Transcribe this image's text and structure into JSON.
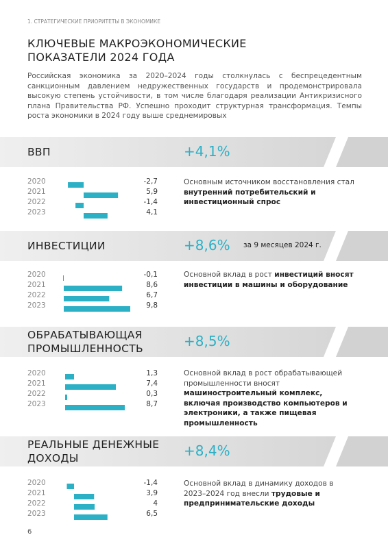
{
  "header": {
    "section": "1. СТРАТЕГИЧЕСКИЕ ПРИОРИТЕТЫ В ЭКОНОМИКЕ",
    "title_lines": [
      "КЛЮЧЕВЫЕ МАКРОЭКОНОМИЧЕСКИЕ",
      "ПОКАЗАТЕЛИ 2024 ГОДА"
    ]
  },
  "intro": "Российская экономика за 2020–2024 годы столкнулась с беспрецедентным санкционным давлением недружественных государств и продемонстрировала высокую степень устойчивости, в том числе благодаря реализации Антикризисного плана Правительства РФ. Успешно проходит структурная трансформация. Темпы роста экономики в 2024 году выше среднемировых",
  "sections": [
    {
      "title_lines": [
        "ВВП"
      ],
      "headline": "+4,1%",
      "chart": {
        "categories": [
          "2020",
          "2021",
          "2022",
          "2023"
        ],
        "values": [
          -2.7,
          5.9,
          -1.4,
          4.1
        ],
        "value_labels": [
          "-2,7",
          "5,9",
          "-1,4",
          "4,1"
        ],
        "color": "#2bb0c6"
      },
      "description": [
        {
          "text": "Основным источником восстановления стал ",
          "bold": false
        },
        {
          "text": "внутренний потребительский и инвестиционный спрос",
          "bold": true
        }
      ]
    },
    {
      "title_lines": [
        "ИНВЕСТИЦИИ"
      ],
      "headline": "+8,6%",
      "note": "за 9 месяцев 2024 г.",
      "chart": {
        "categories": [
          "2020",
          "2021",
          "2022",
          "2023"
        ],
        "values": [
          -0.1,
          8.6,
          6.7,
          9.8
        ],
        "value_labels": [
          "-0,1",
          "8,6",
          "6,7",
          "9,8"
        ],
        "color": "#2bb0c6"
      },
      "description": [
        {
          "text": "Основной вклад в рост ",
          "bold": false
        },
        {
          "text": "инвестиций вносят инвестиции в машины и оборудование",
          "bold": true
        }
      ]
    },
    {
      "title_lines": [
        "ОБРАБАТЫВАЮЩАЯ",
        "ПРОМЫШЛЕННОСТЬ"
      ],
      "headline": "+8,5%",
      "chart": {
        "categories": [
          "2020",
          "2021",
          "2022",
          "2023"
        ],
        "values": [
          1.3,
          7.4,
          0.3,
          8.7
        ],
        "value_labels": [
          "1,3",
          "7,4",
          "0,3",
          "8,7"
        ],
        "color": "#2bb0c6"
      },
      "description": [
        {
          "text": "Основной вклад в рост обрабатывающей промышленности вносят ",
          "bold": false
        },
        {
          "text": "машиностроительный комплекс, включая производство компьютеров и электроники, а также пищевая промышленность",
          "bold": true
        }
      ]
    },
    {
      "title_lines": [
        "РЕАЛЬНЫЕ ДЕНЕЖНЫЕ",
        "ДОХОДЫ"
      ],
      "headline": "+8,4%",
      "chart": {
        "categories": [
          "2020",
          "2021",
          "2022",
          "2023"
        ],
        "values": [
          -1.4,
          3.9,
          4,
          6.5
        ],
        "value_labels": [
          "-1,4",
          "3,9",
          "4",
          "6,5"
        ],
        "color": "#2bb0c6"
      },
      "description": [
        {
          "text": "Основной вклад в динамику доходов в 2023–2024 год внесли ",
          "bold": false
        },
        {
          "text": "трудовые и предпринимательские доходы",
          "bold": true
        }
      ]
    }
  ],
  "page_number": "6"
}
